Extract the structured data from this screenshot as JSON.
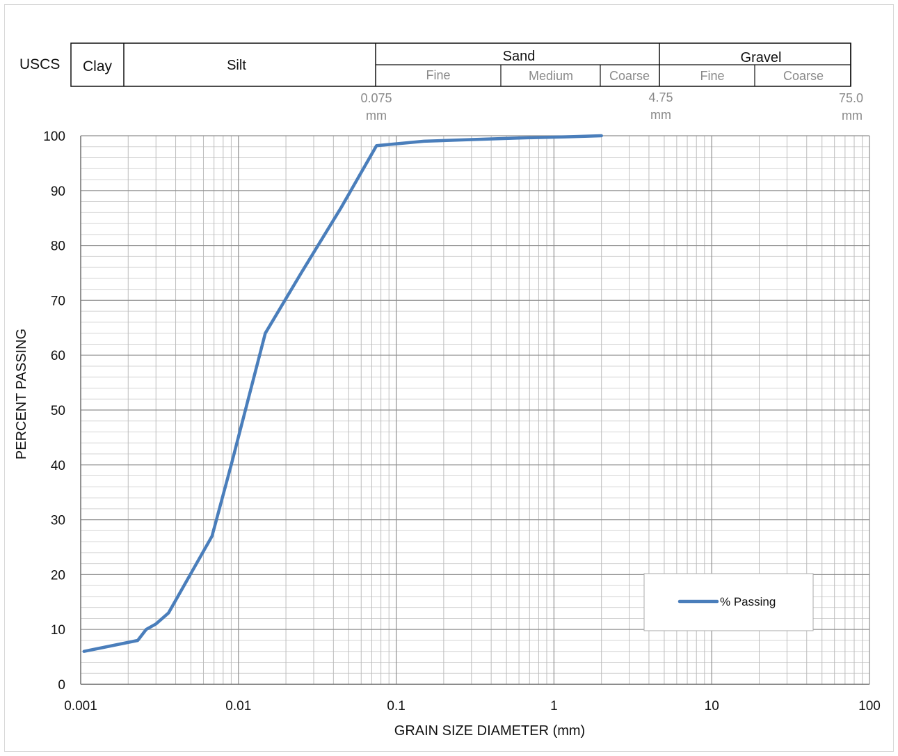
{
  "uscs": {
    "label": "USCS",
    "clay": "Clay",
    "silt": "Silt",
    "sand": "Sand",
    "gravel": "Gravel",
    "sand_fine": "Fine",
    "sand_medium": "Medium",
    "sand_coarse": "Coarse",
    "gravel_fine": "Fine",
    "gravel_coarse": "Coarse",
    "boundary_0075_value": "0.075",
    "boundary_0075_unit": "mm",
    "boundary_475_value": "4.75",
    "boundary_475_unit": "mm",
    "boundary_75_value": "75.0",
    "boundary_75_unit": "mm"
  },
  "chart_data": {
    "type": "line",
    "xlabel": "GRAIN SIZE DIAMETER (mm)",
    "ylabel": "PERCENT PASSING",
    "x_scale": "log",
    "xlim": [
      0.001,
      100
    ],
    "ylim": [
      0,
      100
    ],
    "x_ticks": [
      0.001,
      0.01,
      0.1,
      1,
      10,
      100
    ],
    "x_tick_labels": [
      "0.001",
      "0.01",
      "0.1",
      "1",
      "10",
      "100"
    ],
    "y_ticks": [
      0,
      10,
      20,
      30,
      40,
      50,
      60,
      70,
      80,
      90,
      100
    ],
    "y_tick_labels": [
      "0",
      "10",
      "20",
      "30",
      "40",
      "50",
      "60",
      "70",
      "80",
      "90",
      "100"
    ],
    "grid": true,
    "legend_position": "bottom-right",
    "series": [
      {
        "name": "% Passing",
        "color": "#4a7ebb",
        "x": [
          0.00105,
          0.0023,
          0.0026,
          0.003,
          0.0036,
          0.0068,
          0.009,
          0.0148,
          0.025,
          0.045,
          0.075,
          0.15,
          0.3,
          0.6,
          1.18,
          2.0
        ],
        "y": [
          6,
          8,
          10,
          11,
          13,
          27,
          40,
          64,
          75,
          87,
          98.2,
          99.0,
          99.3,
          99.6,
          99.8,
          100
        ]
      }
    ]
  }
}
